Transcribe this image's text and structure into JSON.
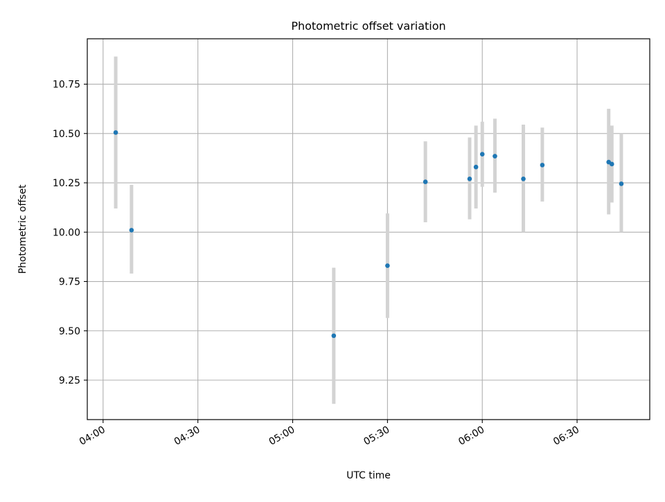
{
  "chart_data": {
    "type": "scatter",
    "title": "Photometric offset variation",
    "xlabel": "UTC time",
    "ylabel": "Photometric offset",
    "x_ticks": [
      "04:00",
      "04:30",
      "05:00",
      "05:30",
      "06:00",
      "06:30"
    ],
    "y_ticks": [
      "9.25",
      "9.50",
      "9.75",
      "10.00",
      "10.25",
      "10.50",
      "10.75"
    ],
    "xlim": [
      "03:55",
      "06:53"
    ],
    "ylim": [
      9.05,
      10.98
    ],
    "grid": true,
    "errorbars": true,
    "series": [
      {
        "marker_color": "#1f77b4",
        "errorbar_color": "#d3d3d3",
        "points": [
          {
            "x": "04:04",
            "y": 10.505,
            "yerr_low": 10.12,
            "yerr_high": 10.89
          },
          {
            "x": "04:09",
            "y": 10.01,
            "yerr_low": 9.79,
            "yerr_high": 10.24
          },
          {
            "x": "05:13",
            "y": 9.475,
            "yerr_low": 9.13,
            "yerr_high": 9.82
          },
          {
            "x": "05:30",
            "y": 9.83,
            "yerr_low": 9.565,
            "yerr_high": 10.095
          },
          {
            "x": "05:42",
            "y": 10.255,
            "yerr_low": 10.05,
            "yerr_high": 10.46
          },
          {
            "x": "05:56",
            "y": 10.27,
            "yerr_low": 10.065,
            "yerr_high": 10.48
          },
          {
            "x": "05:58",
            "y": 10.33,
            "yerr_low": 10.12,
            "yerr_high": 10.54
          },
          {
            "x": "06:00",
            "y": 10.395,
            "yerr_low": 10.23,
            "yerr_high": 10.56
          },
          {
            "x": "06:04",
            "y": 10.385,
            "yerr_low": 10.2,
            "yerr_high": 10.575
          },
          {
            "x": "06:13",
            "y": 10.27,
            "yerr_low": 10.0,
            "yerr_high": 10.545
          },
          {
            "x": "06:19",
            "y": 10.34,
            "yerr_low": 10.155,
            "yerr_high": 10.53
          },
          {
            "x": "06:40",
            "y": 10.355,
            "yerr_low": 10.09,
            "yerr_high": 10.625
          },
          {
            "x": "06:41",
            "y": 10.345,
            "yerr_low": 10.15,
            "yerr_high": 10.54
          },
          {
            "x": "06:44",
            "y": 10.245,
            "yerr_low": 10.0,
            "yerr_high": 10.5
          }
        ]
      }
    ]
  }
}
